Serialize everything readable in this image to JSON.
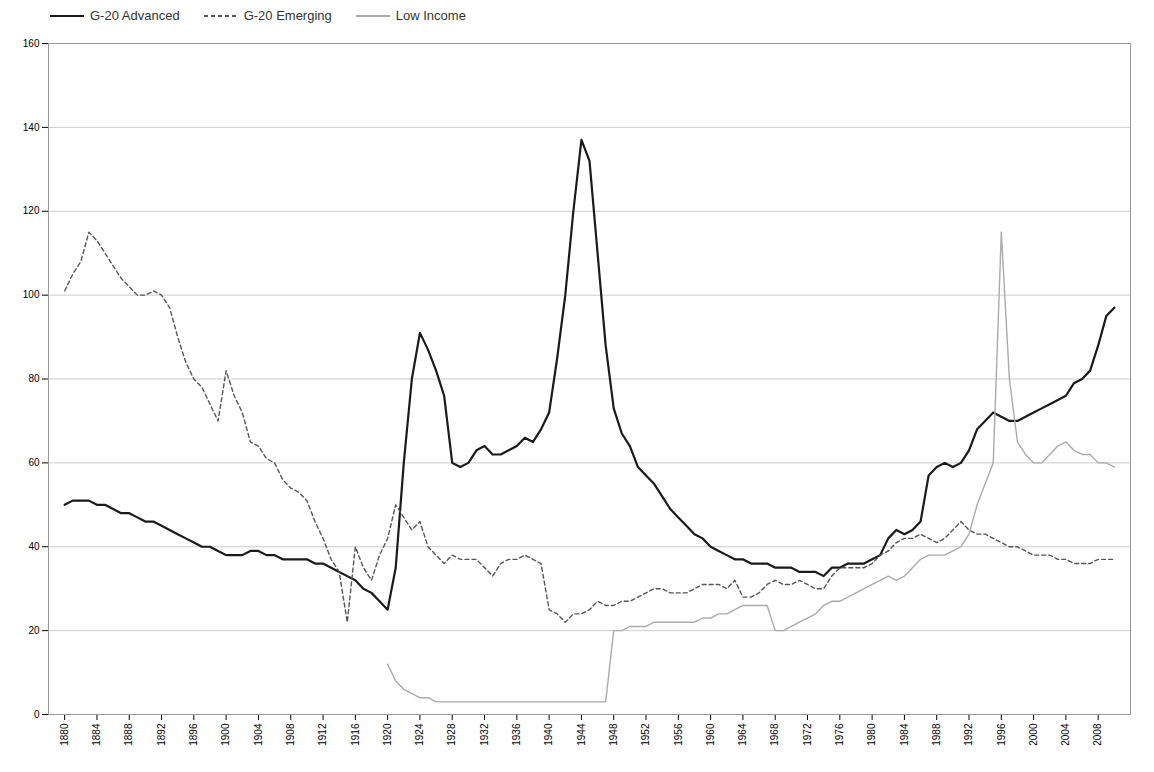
{
  "chart_data": {
    "type": "line",
    "x": [
      1880,
      1881,
      1882,
      1883,
      1884,
      1885,
      1886,
      1887,
      1888,
      1889,
      1890,
      1891,
      1892,
      1893,
      1894,
      1895,
      1896,
      1897,
      1898,
      1899,
      1900,
      1901,
      1902,
      1903,
      1904,
      1905,
      1906,
      1907,
      1908,
      1909,
      1910,
      1911,
      1912,
      1913,
      1914,
      1915,
      1916,
      1917,
      1918,
      1919,
      1920,
      1921,
      1922,
      1923,
      1924,
      1925,
      1926,
      1927,
      1928,
      1929,
      1930,
      1931,
      1932,
      1933,
      1934,
      1935,
      1936,
      1937,
      1938,
      1939,
      1940,
      1941,
      1942,
      1943,
      1944,
      1945,
      1946,
      1947,
      1948,
      1949,
      1950,
      1951,
      1952,
      1953,
      1954,
      1955,
      1956,
      1957,
      1958,
      1959,
      1960,
      1961,
      1962,
      1963,
      1964,
      1965,
      1966,
      1967,
      1968,
      1969,
      1970,
      1971,
      1972,
      1973,
      1974,
      1975,
      1976,
      1977,
      1978,
      1979,
      1980,
      1981,
      1982,
      1983,
      1984,
      1985,
      1986,
      1987,
      1988,
      1989,
      1990,
      1991,
      1992,
      1993,
      1994,
      1995,
      1996,
      1997,
      1998,
      1999,
      2000,
      2001,
      2002,
      2003,
      2004,
      2005,
      2006,
      2007,
      2008,
      2009,
      2010
    ],
    "series": [
      {
        "name": "G-20 Advanced",
        "color": "#1a1a1a",
        "line_style": "solid",
        "values": [
          50,
          51,
          51,
          51,
          50,
          50,
          49,
          48,
          48,
          47,
          46,
          46,
          45,
          44,
          43,
          42,
          41,
          40,
          40,
          39,
          38,
          38,
          38,
          39,
          39,
          38,
          38,
          37,
          37,
          37,
          37,
          36,
          36,
          35,
          34,
          33,
          32,
          30,
          29,
          27,
          25,
          35,
          60,
          80,
          91,
          87,
          82,
          76,
          60,
          59,
          60,
          63,
          64,
          62,
          62,
          63,
          64,
          66,
          65,
          68,
          72,
          85,
          100,
          120,
          137,
          132,
          110,
          88,
          73,
          67,
          64,
          59,
          57,
          55,
          52,
          49,
          47,
          45,
          43,
          42,
          40,
          39,
          38,
          37,
          37,
          36,
          36,
          36,
          35,
          35,
          35,
          34,
          34,
          34,
          33,
          35,
          35,
          36,
          36,
          36,
          37,
          38,
          42,
          44,
          43,
          44,
          46,
          57,
          59,
          60,
          59,
          60,
          63,
          68,
          70,
          72,
          71,
          70,
          70,
          71,
          72,
          73,
          74,
          75,
          76,
          79,
          80,
          82,
          88,
          95,
          97
        ]
      },
      {
        "name": "G-20 Emerging",
        "color": "#555555",
        "line_style": "dashed",
        "values": [
          101,
          105,
          108,
          115,
          113,
          110,
          107,
          104,
          102,
          100,
          100,
          101,
          100,
          97,
          90,
          84,
          80,
          78,
          74,
          70,
          82,
          76,
          72,
          65,
          64,
          61,
          60,
          56,
          54,
          53,
          51,
          46,
          42,
          37,
          34,
          22,
          40,
          35,
          32,
          38,
          42,
          50,
          47,
          44,
          46,
          40,
          38,
          36,
          38,
          37,
          37,
          37,
          35,
          33,
          36,
          37,
          37,
          38,
          37,
          36,
          25,
          24,
          22,
          24,
          24,
          25,
          27,
          26,
          26,
          27,
          27,
          28,
          29,
          30,
          30,
          29,
          29,
          29,
          30,
          31,
          31,
          31,
          30,
          32,
          28,
          28,
          29,
          31,
          32,
          31,
          31,
          32,
          31,
          30,
          30,
          33,
          35,
          35,
          35,
          35,
          36,
          38,
          39,
          41,
          42,
          42,
          43,
          42,
          41,
          42,
          44,
          46,
          44,
          43,
          43,
          42,
          41,
          40,
          40,
          39,
          38,
          38,
          38,
          37,
          37,
          36,
          36,
          36,
          37,
          37,
          37
        ]
      },
      {
        "name": "Low Income",
        "color": "#aaaaaa",
        "line_style": "solid",
        "values": [
          null,
          null,
          null,
          null,
          null,
          null,
          null,
          null,
          null,
          null,
          null,
          null,
          null,
          null,
          null,
          null,
          null,
          null,
          null,
          null,
          null,
          null,
          null,
          null,
          null,
          null,
          null,
          null,
          null,
          null,
          null,
          null,
          null,
          null,
          null,
          null,
          null,
          null,
          null,
          null,
          12,
          8,
          6,
          5,
          4,
          4,
          3,
          3,
          3,
          3,
          3,
          3,
          3,
          3,
          3,
          3,
          3,
          3,
          3,
          3,
          3,
          3,
          3,
          3,
          3,
          3,
          3,
          3,
          20,
          20,
          21,
          21,
          21,
          22,
          22,
          22,
          22,
          22,
          22,
          23,
          23,
          24,
          24,
          25,
          26,
          26,
          26,
          26,
          20,
          20,
          21,
          22,
          23,
          24,
          26,
          27,
          27,
          28,
          29,
          30,
          31,
          32,
          33,
          32,
          33,
          35,
          37,
          38,
          38,
          38,
          39,
          40,
          43,
          50,
          55,
          60,
          115,
          80,
          65,
          62,
          60,
          60,
          62,
          64,
          65,
          63,
          62,
          62,
          60,
          60,
          59
        ]
      }
    ],
    "xlim": [
      1878,
      2012
    ],
    "xticks": [
      1880,
      1884,
      1888,
      1892,
      1896,
      1900,
      1904,
      1908,
      1912,
      1916,
      1920,
      1924,
      1928,
      1932,
      1936,
      1940,
      1944,
      1948,
      1952,
      1956,
      1960,
      1964,
      1968,
      1972,
      1976,
      1980,
      1984,
      1988,
      1992,
      1996,
      2000,
      2004,
      2008
    ],
    "ylim": [
      0,
      160
    ],
    "yticks": [
      0,
      20,
      40,
      60,
      80,
      100,
      120,
      140,
      160
    ],
    "grid": true,
    "legend": "top-left"
  }
}
